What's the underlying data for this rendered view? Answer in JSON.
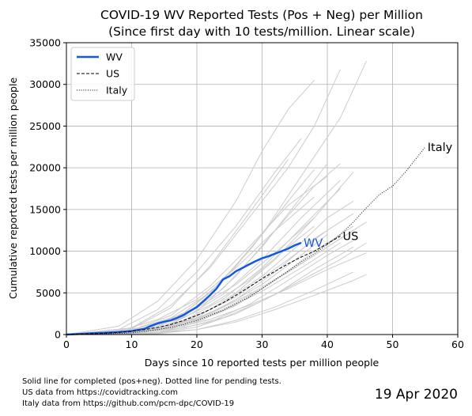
{
  "chart_data": {
    "type": "line",
    "title_line1": "COVID-19 WV Reported Tests (Pos + Neg) per Million",
    "title_line2": "(Since first day with 10 tests/million. Linear scale)",
    "xlabel": "Days since 10 reported tests per million people",
    "ylabel": "Cumulative reported tests per million people",
    "xlim": [
      0,
      60
    ],
    "ylim": [
      0,
      35000
    ],
    "xticks": [
      0,
      10,
      20,
      30,
      40,
      50,
      60
    ],
    "yticks": [
      0,
      5000,
      10000,
      15000,
      20000,
      25000,
      30000,
      35000
    ],
    "grid": true,
    "legend_position": "top-left",
    "legend": [
      {
        "name": "WV",
        "style": "solid-blue"
      },
      {
        "name": "US",
        "style": "dashed-black"
      },
      {
        "name": "Italy",
        "style": "dotted-black"
      }
    ],
    "series": [
      {
        "name": "WV",
        "color": "#1558e0",
        "x": [
          0,
          2,
          4,
          6,
          8,
          10,
          12,
          13,
          14,
          15,
          16,
          17,
          18,
          19,
          20,
          21,
          22,
          23,
          24,
          25,
          26,
          27,
          28,
          29,
          30,
          31,
          32,
          33,
          34,
          35,
          36
        ],
        "y": [
          0,
          80,
          150,
          220,
          300,
          420,
          700,
          1050,
          1350,
          1550,
          1700,
          2000,
          2350,
          2850,
          3300,
          4000,
          4700,
          5500,
          6600,
          7000,
          7600,
          8000,
          8400,
          8800,
          9150,
          9400,
          9700,
          10000,
          10300,
          10700,
          11000
        ]
      },
      {
        "name": "US",
        "color": "#000000",
        "x": [
          0,
          4,
          8,
          10,
          12,
          14,
          16,
          18,
          20,
          22,
          24,
          26,
          28,
          30,
          32,
          34,
          36,
          38,
          40,
          42
        ],
        "y": [
          0,
          100,
          250,
          400,
          600,
          850,
          1200,
          1700,
          2300,
          3000,
          3800,
          4700,
          5700,
          6700,
          7600,
          8500,
          9300,
          10000,
          10900,
          11800
        ]
      },
      {
        "name": "Italy",
        "color": "#000000",
        "x": [
          0,
          5,
          10,
          12,
          14,
          16,
          18,
          20,
          22,
          24,
          26,
          28,
          30,
          32,
          34,
          36,
          38,
          40,
          42,
          44,
          46,
          48,
          50,
          52,
          54,
          55
        ],
        "y": [
          0,
          60,
          200,
          400,
          600,
          850,
          1200,
          1700,
          2300,
          2900,
          3700,
          4500,
          5500,
          6600,
          7600,
          8700,
          9700,
          10800,
          12000,
          13500,
          15200,
          16800,
          17800,
          19500,
          21500,
          22500
        ]
      }
    ],
    "series_labels": [
      {
        "text": "WV",
        "color": "#1558e0",
        "x": 36,
        "y": 11000
      },
      {
        "text": "US",
        "color": "#000000",
        "x": 42,
        "y": 11800
      },
      {
        "text": "Italy",
        "color": "#000000",
        "x": 55,
        "y": 22500
      }
    ],
    "background_color": "#cccccc",
    "background_series": [
      {
        "x": [
          0,
          8,
          14,
          20,
          26,
          30,
          34,
          38
        ],
        "y": [
          0,
          1000,
          4000,
          9000,
          16000,
          22000,
          27000,
          30500
        ]
      },
      {
        "x": [
          0,
          10,
          16,
          22,
          28,
          34,
          38,
          42
        ],
        "y": [
          0,
          800,
          3500,
          8000,
          14000,
          20000,
          25000,
          31800
        ]
      },
      {
        "x": [
          0,
          12,
          18,
          24,
          30,
          36,
          42,
          46
        ],
        "y": [
          0,
          600,
          2500,
          6500,
          12000,
          19000,
          26000,
          32800
        ]
      },
      {
        "x": [
          0,
          8,
          14,
          20,
          26,
          32,
          36
        ],
        "y": [
          0,
          600,
          3000,
          7500,
          13000,
          19500,
          23500
        ]
      },
      {
        "x": [
          0,
          10,
          16,
          22,
          28,
          34
        ],
        "y": [
          0,
          700,
          3200,
          8200,
          14500,
          21000
        ]
      },
      {
        "x": [
          0,
          12,
          18,
          24,
          30,
          36,
          40
        ],
        "y": [
          0,
          500,
          2200,
          5500,
          10500,
          16500,
          20500
        ]
      },
      {
        "x": [
          0,
          10,
          18,
          24,
          30,
          36,
          42
        ],
        "y": [
          0,
          400,
          2000,
          4800,
          9000,
          14000,
          18500
        ]
      },
      {
        "x": [
          0,
          12,
          20,
          26,
          32,
          38,
          44
        ],
        "y": [
          0,
          300,
          2000,
          5000,
          9000,
          14000,
          19500
        ]
      },
      {
        "x": [
          0,
          14,
          20,
          26,
          32,
          38,
          42
        ],
        "y": [
          0,
          500,
          2800,
          7000,
          12500,
          17800,
          20500
        ]
      },
      {
        "x": [
          0,
          10,
          16,
          22,
          28,
          34
        ],
        "y": [
          0,
          500,
          2000,
          5000,
          10000,
          16000
        ]
      },
      {
        "x": [
          0,
          8,
          14,
          20,
          26,
          32,
          38
        ],
        "y": [
          0,
          400,
          1800,
          4200,
          8000,
          12500,
          16500
        ]
      },
      {
        "x": [
          0,
          12,
          18,
          24,
          30,
          36,
          40,
          44
        ],
        "y": [
          0,
          300,
          1500,
          3800,
          7000,
          11000,
          14000,
          16000
        ]
      },
      {
        "x": [
          0,
          10,
          16,
          22,
          28,
          34,
          38
        ],
        "y": [
          0,
          300,
          1400,
          3500,
          6500,
          10500,
          13000
        ]
      },
      {
        "x": [
          0,
          14,
          20,
          26,
          32,
          38,
          44
        ],
        "y": [
          0,
          200,
          1500,
          3500,
          6500,
          10000,
          13000
        ]
      },
      {
        "x": [
          0,
          10,
          18,
          24,
          30,
          36,
          42,
          46
        ],
        "y": [
          0,
          200,
          1200,
          3000,
          5500,
          8500,
          11500,
          13500
        ]
      },
      {
        "x": [
          0,
          12,
          18,
          24,
          30,
          36,
          40
        ],
        "y": [
          0,
          250,
          1300,
          3300,
          6000,
          9500,
          12000
        ]
      },
      {
        "x": [
          0,
          10,
          16,
          22,
          28,
          34,
          40,
          44
        ],
        "y": [
          0,
          200,
          1000,
          2500,
          4800,
          7500,
          10500,
          12500
        ]
      },
      {
        "x": [
          0,
          14,
          20,
          26,
          32,
          38,
          44
        ],
        "y": [
          0,
          150,
          900,
          2500,
          4800,
          7800,
          10500
        ]
      },
      {
        "x": [
          0,
          12,
          18,
          24,
          30,
          36,
          42,
          46
        ],
        "y": [
          0,
          150,
          800,
          2000,
          4000,
          6500,
          9000,
          11000
        ]
      },
      {
        "x": [
          0,
          10,
          16,
          22,
          28,
          34,
          40,
          46
        ],
        "y": [
          0,
          100,
          700,
          1800,
          3500,
          5500,
          7800,
          9800
        ]
      },
      {
        "x": [
          0,
          14,
          20,
          26,
          32,
          38,
          44
        ],
        "y": [
          0,
          100,
          600,
          1700,
          3300,
          5300,
          7500
        ]
      },
      {
        "x": [
          0,
          12,
          20,
          26,
          32,
          38,
          44,
          46
        ],
        "y": [
          0,
          100,
          600,
          1500,
          3000,
          4700,
          6500,
          7200
        ]
      },
      {
        "x": [
          0,
          10,
          18,
          24,
          30,
          36,
          42
        ],
        "y": [
          0,
          200,
          1000,
          2800,
          5200,
          8000,
          11000
        ]
      },
      {
        "x": [
          0,
          8,
          14,
          20,
          26,
          32,
          38
        ],
        "y": [
          0,
          300,
          1300,
          3200,
          6000,
          9800,
          14000
        ]
      },
      {
        "x": [
          0,
          12,
          18,
          24,
          30,
          36,
          42
        ],
        "y": [
          0,
          400,
          1700,
          4200,
          8000,
          12800,
          17500
        ]
      },
      {
        "x": [
          0,
          10,
          16,
          22,
          28,
          34,
          40
        ],
        "y": [
          0,
          500,
          2300,
          5800,
          10500,
          15500,
          19000
        ]
      },
      {
        "x": [
          0,
          12,
          20,
          26,
          32,
          38,
          44
        ],
        "y": [
          0,
          300,
          1800,
          4200,
          7500,
          11500,
          14500
        ]
      },
      {
        "x": [
          0,
          14,
          22,
          28,
          34,
          40,
          44
        ],
        "y": [
          0,
          200,
          1500,
          3600,
          6500,
          9500,
          11300
        ]
      },
      {
        "x": [
          0,
          10,
          18,
          26,
          34,
          40
        ],
        "y": [
          0,
          250,
          1500,
          4500,
          9000,
          12500
        ]
      },
      {
        "x": [
          0,
          12,
          18,
          22,
          26,
          30,
          34,
          38
        ],
        "y": [
          0,
          600,
          2600,
          5000,
          8200,
          12000,
          16000,
          19800
        ]
      }
    ]
  },
  "footnotes": [
    "Solid line for completed (pos+neg). Dotted line for pending tests.",
    "US data from https://covidtracking.com",
    "Italy data from https://github.com/pcm-dpc/COVID-19"
  ],
  "date_stamp": "19 Apr 2020"
}
